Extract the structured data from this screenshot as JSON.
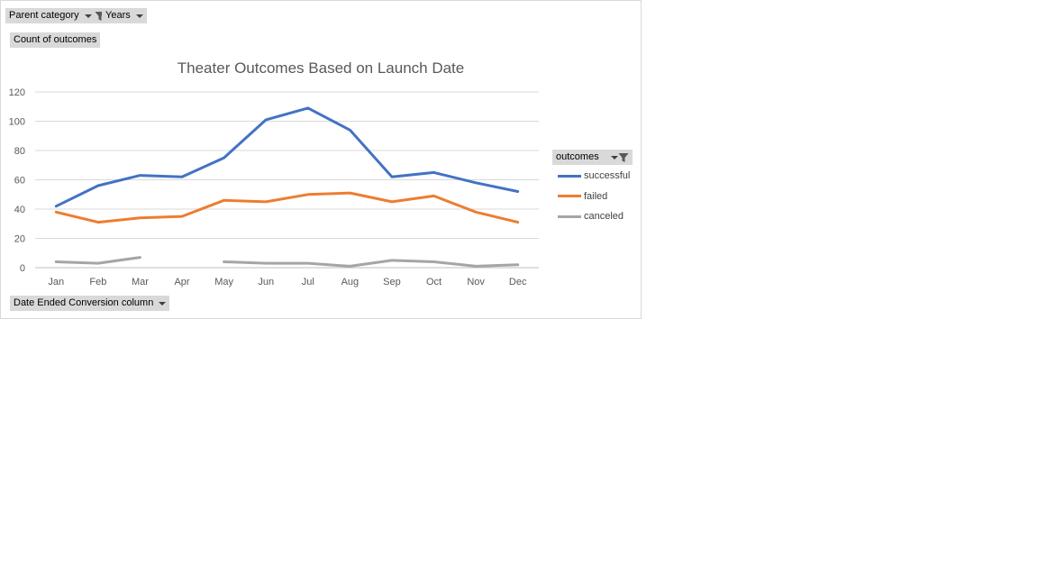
{
  "filters": {
    "parent_category": "Parent category",
    "years": "Years",
    "values_field": "Count of outcomes",
    "axis_field": "Date Ended Conversion column",
    "legend_field": "outcomes"
  },
  "chart_data": {
    "type": "line",
    "title": "Theater Outcomes Based on Launch Date",
    "categories": [
      "Jan",
      "Feb",
      "Mar",
      "Apr",
      "May",
      "Jun",
      "Jul",
      "Aug",
      "Sep",
      "Oct",
      "Nov",
      "Dec"
    ],
    "ylim": [
      0,
      120
    ],
    "yticks": [
      0,
      20,
      40,
      60,
      80,
      100,
      120
    ],
    "grid": true,
    "legend_position": "right",
    "series": [
      {
        "name": "successful",
        "color": "#4472C4",
        "values": [
          42,
          56,
          63,
          62,
          75,
          101,
          109,
          94,
          62,
          65,
          58,
          52
        ]
      },
      {
        "name": "failed",
        "color": "#ED7D31",
        "values": [
          38,
          31,
          34,
          35,
          46,
          45,
          50,
          51,
          45,
          49,
          38,
          31
        ]
      },
      {
        "name": "canceled",
        "color": "#A5A5A5",
        "values": [
          4,
          3,
          7,
          null,
          4,
          3,
          3,
          1,
          5,
          4,
          1,
          2
        ]
      }
    ]
  }
}
